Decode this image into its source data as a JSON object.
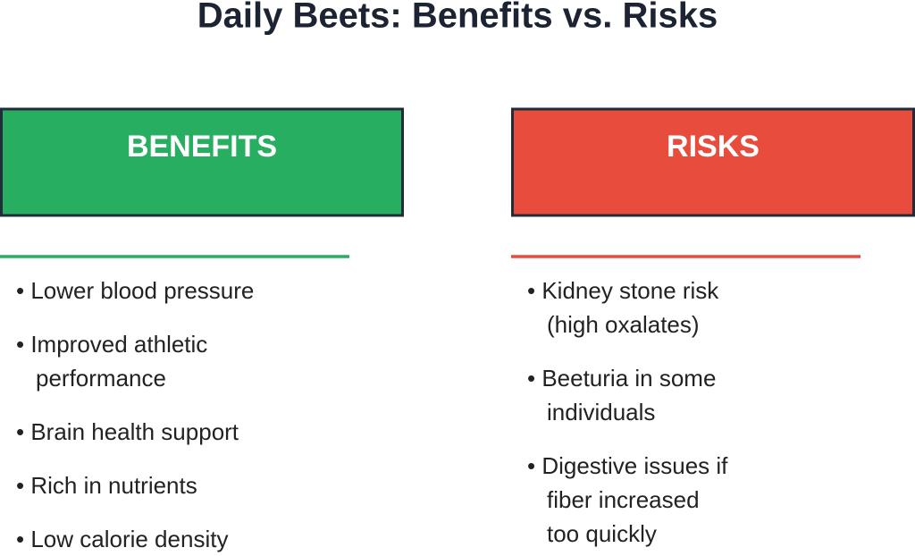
{
  "title": "Daily Beets: Benefits vs. Risks",
  "columns": [
    {
      "header": "BENEFITS",
      "color": "#27ae60",
      "items": [
        [
          "• Lower blood pressure"
        ],
        [
          "• Improved athletic",
          "performance"
        ],
        [
          "• Brain health support"
        ],
        [
          "• Rich in nutrients"
        ],
        [
          "• Low calorie density"
        ]
      ]
    },
    {
      "header": "RISKS",
      "color": "#e74c3c",
      "items": [
        [
          "• Kidney stone risk",
          "(high oxalates)"
        ],
        [
          "• Beeturia in some",
          "individuals"
        ],
        [
          "• Digestive issues if",
          "fiber increased",
          "too quickly"
        ]
      ]
    }
  ]
}
